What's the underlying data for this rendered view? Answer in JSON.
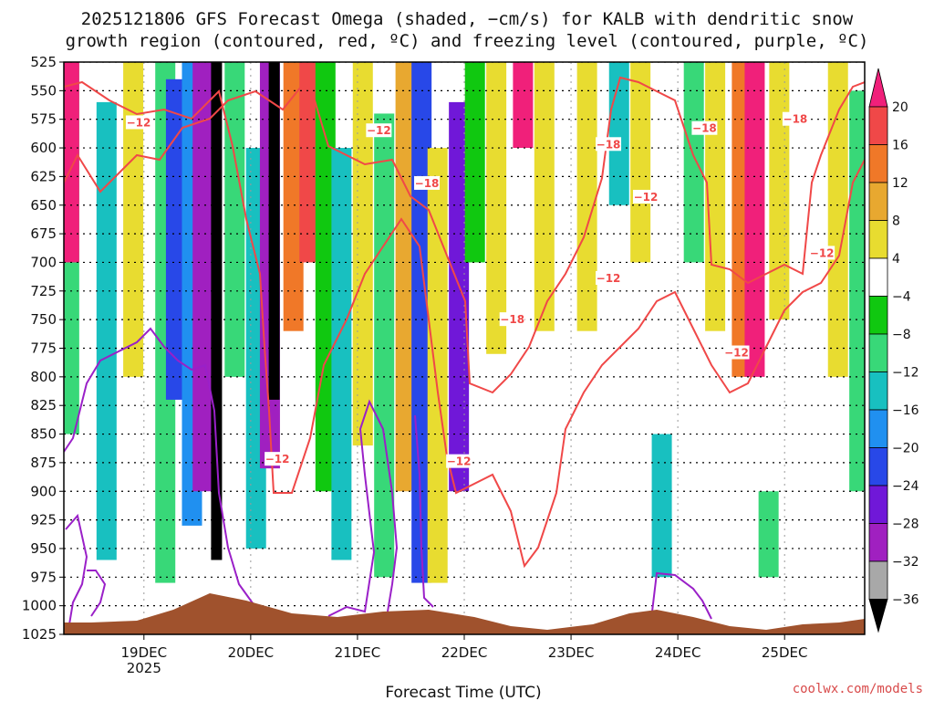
{
  "title_line1": "2025121806 GFS Forecast Omega (shaded, −cm/s) for KALB with dendritic snow",
  "title_line2": "growth region (contoured, red, ºC) and freezing level (contoured, purple, ºC)",
  "credit": "coolwx.com/models",
  "credit_color": "#d84a4a",
  "chart_data": {
    "type": "heatmap",
    "title": "2025121806 GFS Forecast Omega (shaded, −cm/s) for KALB with dendritic snow growth region (contoured, red, ºC) and freezing level (contoured, purple, ºC)",
    "xlabel": "Forecast Time (UTC)",
    "ylabel": "Pressure (hPa)",
    "x_range_days": [
      18.25,
      25.75
    ],
    "x_ticks": [
      {
        "label": "19DEC",
        "day": 19
      },
      {
        "label": "20DEC",
        "day": 20
      },
      {
        "label": "21DEC",
        "day": 21
      },
      {
        "label": "22DEC",
        "day": 22
      },
      {
        "label": "23DEC",
        "day": 23
      },
      {
        "label": "24DEC",
        "day": 24
      },
      {
        "label": "25DEC",
        "day": 25
      }
    ],
    "x_year_label": "2025",
    "y_range": [
      525,
      1025
    ],
    "y_ticks": [
      525,
      550,
      575,
      600,
      625,
      650,
      675,
      700,
      725,
      750,
      775,
      800,
      825,
      850,
      875,
      900,
      925,
      950,
      975,
      1000,
      1025
    ],
    "colorbar": {
      "labels": [
        "20",
        "16",
        "12",
        "8",
        "4",
        "−4",
        "−8",
        "−12",
        "−16",
        "−20",
        "−24",
        "−28",
        "−32",
        "−36"
      ],
      "bins": [
        {
          "range": ">20",
          "color": "#f0207a"
        },
        {
          "range": "16 to 20",
          "color": "#f04848"
        },
        {
          "range": "12 to 16",
          "color": "#f07828"
        },
        {
          "range": "8 to 12",
          "color": "#e8a830"
        },
        {
          "range": "4 to 8",
          "color": "#e8dc30"
        },
        {
          "range": "-4 to 4",
          "color": "#ffffff"
        },
        {
          "range": "-8 to -4",
          "color": "#10c810"
        },
        {
          "range": "-12 to -8",
          "color": "#38d878"
        },
        {
          "range": "-16 to -12",
          "color": "#18c0c0"
        },
        {
          "range": "-20 to -16",
          "color": "#2090f0"
        },
        {
          "range": "-24 to -20",
          "color": "#2848e8"
        },
        {
          "range": "-28 to -24",
          "color": "#7018d8"
        },
        {
          "range": "-32 to -28",
          "color": "#a020c0"
        },
        {
          "range": "-36 to -32",
          "color": "#a8a8a8"
        },
        {
          "range": "<-36",
          "color": "#000000"
        }
      ]
    },
    "omega_columns": [
      {
        "day": 18.3,
        "top": 525,
        "bottom": 850,
        "value": -8
      },
      {
        "day": 18.3,
        "top": 525,
        "bottom": 700,
        "value": 22
      },
      {
        "day": 18.65,
        "top": 560,
        "bottom": 960,
        "value": -14
      },
      {
        "day": 18.9,
        "top": 525,
        "bottom": 800,
        "value": 6
      },
      {
        "day": 19.2,
        "top": 525,
        "bottom": 980,
        "value": -10
      },
      {
        "day": 19.3,
        "top": 540,
        "bottom": 820,
        "value": -22
      },
      {
        "day": 19.45,
        "top": 525,
        "bottom": 930,
        "value": -18
      },
      {
        "day": 19.55,
        "top": 525,
        "bottom": 900,
        "value": -30
      },
      {
        "day": 19.68,
        "top": 525,
        "bottom": 960,
        "value": -40
      },
      {
        "day": 19.85,
        "top": 525,
        "bottom": 800,
        "value": -10
      },
      {
        "day": 20.05,
        "top": 600,
        "bottom": 950,
        "value": -12
      },
      {
        "day": 20.18,
        "top": 525,
        "bottom": 880,
        "value": -30
      },
      {
        "day": 20.22,
        "top": 525,
        "bottom": 820,
        "value": -40
      },
      {
        "day": 20.4,
        "top": 525,
        "bottom": 760,
        "value": 14
      },
      {
        "day": 20.55,
        "top": 525,
        "bottom": 700,
        "value": 18
      },
      {
        "day": 20.7,
        "top": 525,
        "bottom": 900,
        "value": -6
      },
      {
        "day": 20.85,
        "top": 600,
        "bottom": 960,
        "value": -12
      },
      {
        "day": 21.05,
        "top": 525,
        "bottom": 860,
        "value": 6
      },
      {
        "day": 21.25,
        "top": 570,
        "bottom": 975,
        "value": -10
      },
      {
        "day": 21.45,
        "top": 525,
        "bottom": 900,
        "value": 10
      },
      {
        "day": 21.6,
        "top": 525,
        "bottom": 980,
        "value": -22
      },
      {
        "day": 21.75,
        "top": 600,
        "bottom": 980,
        "value": 6
      },
      {
        "day": 21.95,
        "top": 560,
        "bottom": 900,
        "value": -24
      },
      {
        "day": 22.1,
        "top": 525,
        "bottom": 700,
        "value": -6
      },
      {
        "day": 22.3,
        "top": 525,
        "bottom": 780,
        "value": 8
      },
      {
        "day": 22.55,
        "top": 525,
        "bottom": 600,
        "value": 22
      },
      {
        "day": 22.75,
        "top": 525,
        "bottom": 760,
        "value": 6
      },
      {
        "day": 23.15,
        "top": 525,
        "bottom": 760,
        "value": 6
      },
      {
        "day": 23.45,
        "top": 525,
        "bottom": 650,
        "value": -14
      },
      {
        "day": 23.65,
        "top": 525,
        "bottom": 700,
        "value": 6
      },
      {
        "day": 23.85,
        "top": 850,
        "bottom": 975,
        "value": -14
      },
      {
        "day": 24.15,
        "top": 525,
        "bottom": 700,
        "value": -10
      },
      {
        "day": 24.35,
        "top": 525,
        "bottom": 760,
        "value": 8
      },
      {
        "day": 24.6,
        "top": 525,
        "bottom": 800,
        "value": 14
      },
      {
        "day": 24.72,
        "top": 525,
        "bottom": 800,
        "value": 22
      },
      {
        "day": 24.95,
        "top": 525,
        "bottom": 750,
        "value": 6
      },
      {
        "day": 24.85,
        "top": 900,
        "bottom": 975,
        "value": -10
      },
      {
        "day": 25.5,
        "top": 525,
        "bottom": 800,
        "value": 6
      },
      {
        "day": 25.7,
        "top": 550,
        "bottom": 900,
        "value": -8
      }
    ],
    "contour_labels": [
      {
        "text": "−12",
        "day": 18.95,
        "p": 578
      },
      {
        "text": "−12",
        "day": 21.2,
        "p": 585
      },
      {
        "text": "−18",
        "day": 21.65,
        "p": 631
      },
      {
        "text": "−18",
        "day": 23.35,
        "p": 597
      },
      {
        "text": "−12",
        "day": 23.7,
        "p": 643
      },
      {
        "text": "−18",
        "day": 24.25,
        "p": 583
      },
      {
        "text": "−18",
        "day": 25.1,
        "p": 575
      },
      {
        "text": "−12",
        "day": 25.35,
        "p": 692
      },
      {
        "text": "−12",
        "day": 23.35,
        "p": 714
      },
      {
        "text": "−18",
        "day": 22.45,
        "p": 750
      },
      {
        "text": "−12",
        "day": 24.55,
        "p": 779
      },
      {
        "text": "−12",
        "day": 21.95,
        "p": 874
      },
      {
        "text": "−12",
        "day": 20.25,
        "p": 872
      }
    ]
  }
}
